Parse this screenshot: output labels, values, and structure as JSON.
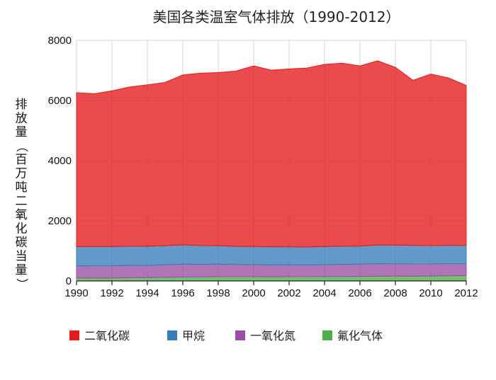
{
  "chart_data": {
    "type": "area",
    "stacked": true,
    "title": "美国各类温室气体排放（1990-2012）",
    "ylabel": "排放量（百万吨二氧化碳当量）",
    "xlabel": "",
    "x": [
      1990,
      1991,
      1992,
      1993,
      1994,
      1995,
      1996,
      1997,
      1998,
      1999,
      2000,
      2001,
      2002,
      2003,
      2004,
      2005,
      2006,
      2007,
      2008,
      2009,
      2010,
      2011,
      2012
    ],
    "xticks": [
      1990,
      1992,
      1994,
      1996,
      1998,
      2000,
      2002,
      2004,
      2006,
      2008,
      2010,
      2012
    ],
    "xtick_labels": [
      "1990",
      "1992",
      "1994",
      "1996",
      "1998",
      "2000",
      "2002",
      "2004",
      "2006",
      "2008",
      "2010",
      "2012"
    ],
    "xlim": [
      1990,
      2012
    ],
    "ylim": [
      0,
      8000
    ],
    "yticks": [
      0,
      2000,
      4000,
      6000,
      8000
    ],
    "ytick_labels": [
      "0",
      "2000",
      "4000",
      "6000",
      "8000"
    ],
    "grid": true,
    "legend_position": "bottom",
    "series": [
      {
        "name": "氟化气体",
        "color": "#4daf4a",
        "values": [
          100,
          95,
          100,
          105,
          110,
          120,
          130,
          130,
          140,
          140,
          140,
          135,
          140,
          140,
          145,
          145,
          150,
          155,
          160,
          155,
          165,
          170,
          175
        ]
      },
      {
        "name": "一氧化氮",
        "color": "#984ea3",
        "values": [
          400,
          410,
          405,
          410,
          405,
          420,
          430,
          425,
          420,
          410,
          405,
          400,
          395,
          390,
          400,
          410,
          410,
          420,
          410,
          410,
          400,
          405,
          395
        ]
      },
      {
        "name": "甲烷",
        "color": "#377eb8",
        "values": [
          640,
          640,
          640,
          640,
          640,
          630,
          640,
          620,
          610,
          600,
          600,
          600,
          600,
          600,
          600,
          600,
          600,
          620,
          620,
          620,
          610,
          610,
          610
        ]
      },
      {
        "name": "二氧化碳",
        "color": "#e41a1c",
        "values": [
          5120,
          5080,
          5175,
          5295,
          5365,
          5430,
          5650,
          5735,
          5760,
          5830,
          6005,
          5875,
          5915,
          5950,
          6055,
          6085,
          5990,
          6125,
          5910,
          5485,
          5705,
          5565,
          5320
        ]
      }
    ]
  }
}
